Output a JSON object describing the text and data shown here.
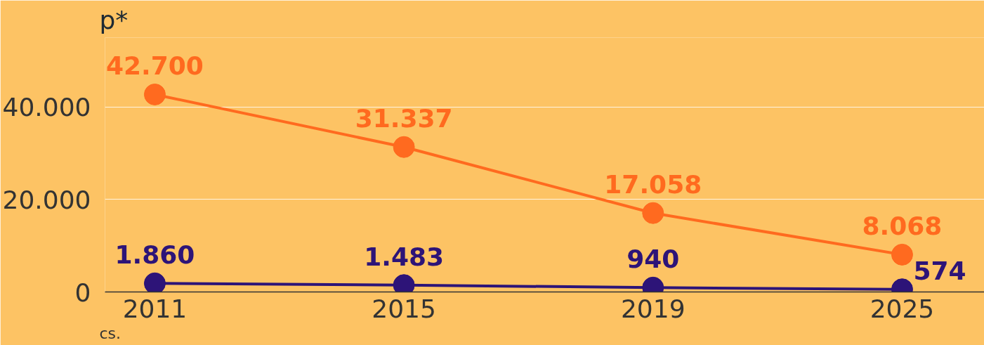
{
  "chart_data": {
    "type": "line",
    "categories": [
      "2011",
      "2015",
      "2019",
      "2025"
    ],
    "series": [
      {
        "color": "#ff6a1f",
        "values": [
          42700,
          31337,
          17058,
          8068
        ],
        "value_labels": [
          "42.700",
          "31.337",
          "17.058",
          "8.068"
        ]
      },
      {
        "color": "#2d1478",
        "values": [
          1860,
          1483,
          940,
          574
        ],
        "value_labels": [
          "1.860",
          "1.483",
          "940",
          "574"
        ]
      }
    ],
    "ylim": [
      0,
      55000
    ],
    "yticks": [
      0,
      {
        "value": 20000,
        "label": "20.000"
      },
      {
        "value": 40000,
        "label": "40.000"
      }
    ],
    "grid": "y",
    "marker": "circle",
    "line_style": "solid",
    "annotations": [
      "p*",
      "cs."
    ]
  }
}
